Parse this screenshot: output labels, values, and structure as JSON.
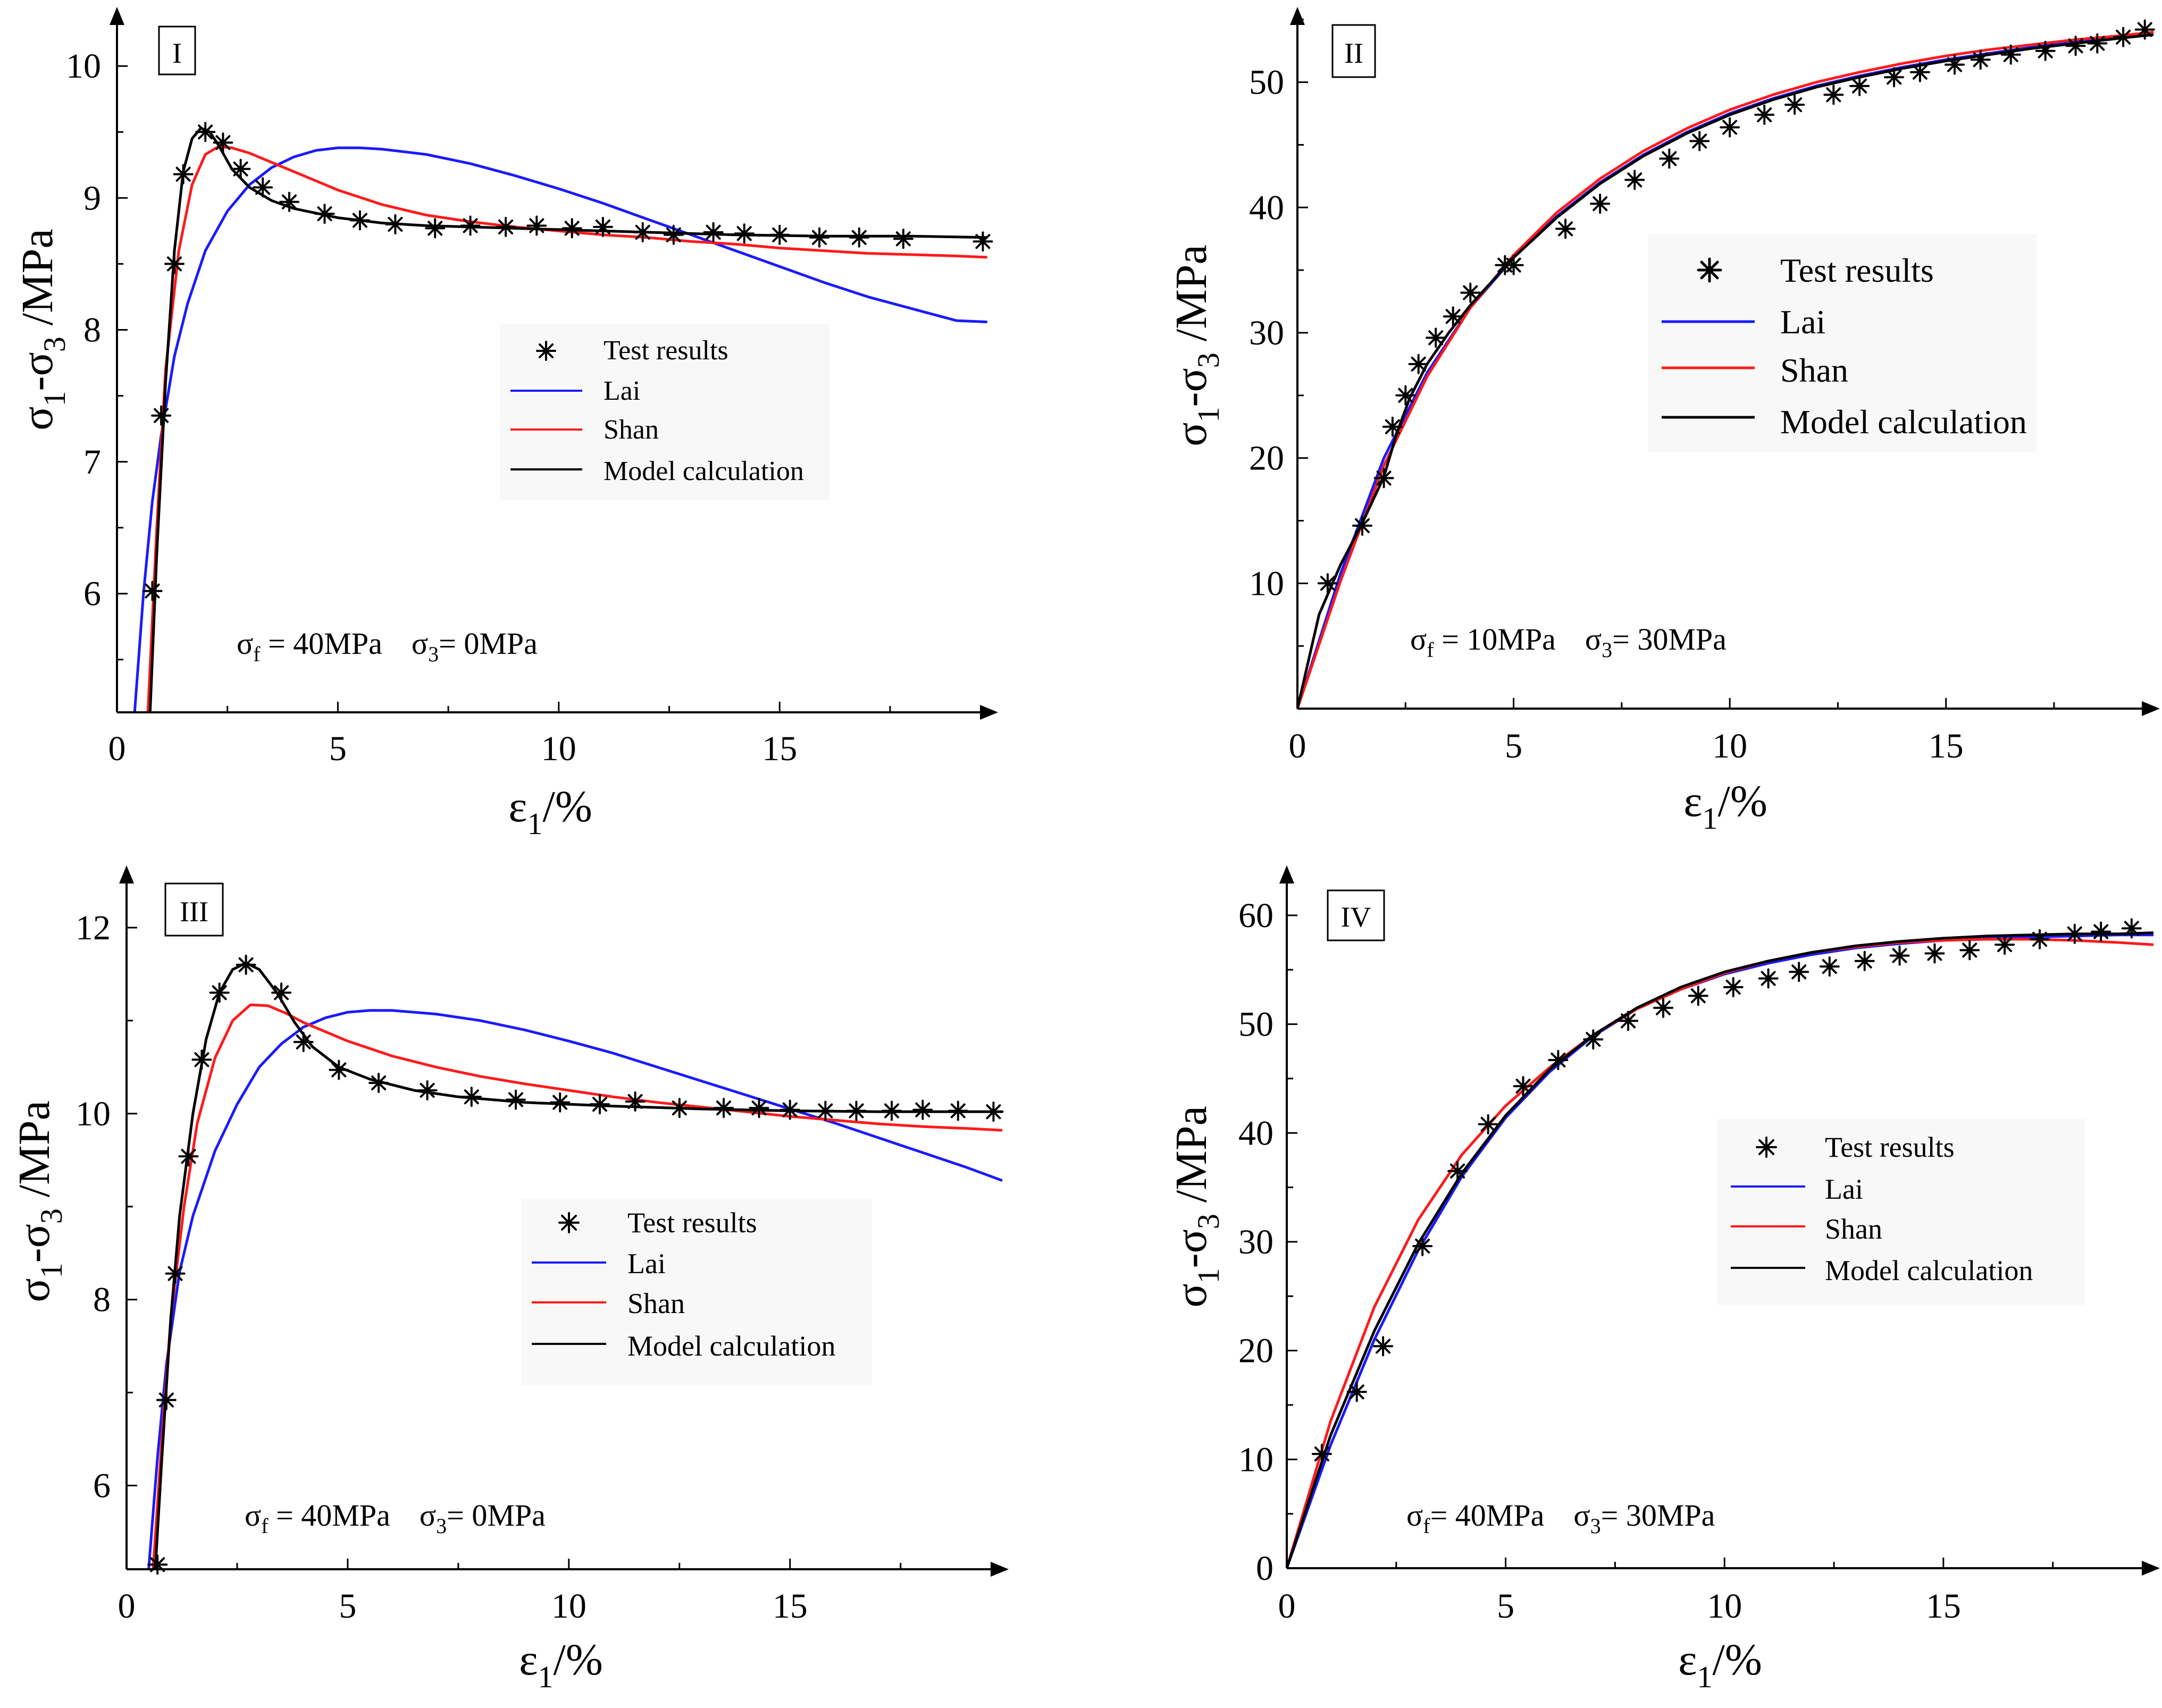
{
  "figure": "four-panel stress-strain comparison",
  "colors": {
    "test": "#000000",
    "lai": "#1a1aff",
    "shan": "#ff1a1a",
    "model": "#000000"
  },
  "chart_data": [
    {
      "type": "line",
      "panel_label": "I",
      "ylim": [
        5.1,
        10.4
      ],
      "xlim": [
        0,
        19.8
      ],
      "yticks": [
        6,
        7,
        8,
        9,
        10
      ],
      "xticks": [
        0,
        5,
        10,
        15
      ],
      "xlabel_main": "ε",
      "xlabel_sub": "1",
      "xlabel_tail": "/%",
      "ylabel_a": "σ",
      "ylabel_sub_a": "1",
      "ylabel_mid": "-σ",
      "ylabel_sub_b": "3",
      "ylabel_tail": " /MPa",
      "legend": {
        "test": "Test results",
        "lai": "Lai",
        "shan": "Shan",
        "model": "Model calculation"
      },
      "note": {
        "f_sym": "σ",
        "f_sub": "f",
        "f_val": " = 40MPa",
        "s3_sym": "σ",
        "s3_sub": "3",
        "s3_val": "= 0MPa"
      },
      "series": [
        {
          "name": "Test results",
          "x": [
            0.8,
            1.0,
            1.3,
            1.5,
            2.0,
            2.4,
            2.8,
            3.3,
            3.9,
            4.7,
            5.5,
            6.3,
            7.2,
            8.0,
            8.8,
            9.5,
            10.3,
            11.0,
            11.9,
            12.6,
            13.5,
            14.2,
            15.0,
            15.9,
            16.8,
            17.8,
            19.6
          ],
          "y": [
            6.02,
            7.35,
            8.5,
            9.18,
            9.5,
            9.42,
            9.22,
            9.08,
            8.97,
            8.88,
            8.83,
            8.8,
            8.77,
            8.79,
            8.78,
            8.79,
            8.77,
            8.78,
            8.74,
            8.72,
            8.74,
            8.73,
            8.72,
            8.7,
            8.7,
            8.69,
            8.67
          ]
        },
        {
          "name": "Lai",
          "x": [
            0.4,
            0.6,
            0.8,
            1.0,
            1.3,
            1.6,
            2.0,
            2.5,
            3.0,
            3.5,
            4.0,
            4.5,
            5.0,
            5.5,
            6.0,
            7.0,
            8.0,
            9.0,
            10.0,
            11.0,
            12.0,
            13.0,
            14.0,
            15.0,
            16.0,
            17.0,
            18.0,
            19.0,
            19.7
          ],
          "y": [
            5.1,
            6.0,
            6.7,
            7.2,
            7.8,
            8.2,
            8.6,
            8.9,
            9.1,
            9.23,
            9.31,
            9.36,
            9.38,
            9.38,
            9.37,
            9.33,
            9.26,
            9.17,
            9.07,
            8.96,
            8.84,
            8.72,
            8.6,
            8.48,
            8.36,
            8.25,
            8.16,
            8.07,
            8.06
          ]
        },
        {
          "name": "Shan",
          "x": [
            0.7,
            0.9,
            1.1,
            1.4,
            1.7,
            2.0,
            2.3,
            2.6,
            3.0,
            3.5,
            4.0,
            5.0,
            6.0,
            7.0,
            8.0,
            9.0,
            10.0,
            11.0,
            12.0,
            13.0,
            14.0,
            15.0,
            16.0,
            17.0,
            18.0,
            19.0,
            19.7
          ],
          "y": [
            5.1,
            6.5,
            7.7,
            8.6,
            9.1,
            9.33,
            9.39,
            9.38,
            9.34,
            9.27,
            9.2,
            9.06,
            8.95,
            8.87,
            8.82,
            8.78,
            8.75,
            8.72,
            8.7,
            8.67,
            8.65,
            8.62,
            8.6,
            8.58,
            8.57,
            8.56,
            8.55
          ]
        },
        {
          "name": "Model calculation",
          "x": [
            0.75,
            0.9,
            1.1,
            1.3,
            1.5,
            1.7,
            1.9,
            2.1,
            2.3,
            2.6,
            3.0,
            3.5,
            4.0,
            5.0,
            6.0,
            7.0,
            8.0,
            10.0,
            12.0,
            14.0,
            16.0,
            18.0,
            19.7
          ],
          "y": [
            5.1,
            6.3,
            7.6,
            8.6,
            9.2,
            9.45,
            9.53,
            9.5,
            9.4,
            9.22,
            9.08,
            8.98,
            8.92,
            8.85,
            8.81,
            8.79,
            8.78,
            8.76,
            8.74,
            8.72,
            8.71,
            8.71,
            8.7
          ]
        }
      ]
    },
    {
      "type": "line",
      "panel_label": "II",
      "ylim": [
        0,
        55.5
      ],
      "xlim": [
        0,
        19.8
      ],
      "yticks": [
        10,
        20,
        30,
        40,
        50
      ],
      "xticks": [
        0,
        5,
        10,
        15
      ],
      "xlabel_main": "ε",
      "xlabel_sub": "1",
      "xlabel_tail": "/%",
      "ylabel_a": "σ",
      "ylabel_sub_a": "1",
      "ylabel_mid": "-σ",
      "ylabel_sub_b": "3",
      "ylabel_tail": " /MPa",
      "legend": {
        "test": "Test results",
        "lai": "Lai",
        "shan": "Shan",
        "model": "Model calculation"
      },
      "note": {
        "f_sym": "σ",
        "f_sub": "f",
        "f_val": " = 10MPa",
        "s3_sym": "σ",
        "s3_sub": "3",
        "s3_val": "= 30MPa"
      },
      "series": [
        {
          "name": "Test results",
          "x": [
            0.7,
            1.5,
            2.0,
            2.2,
            2.5,
            2.8,
            3.2,
            3.6,
            4.0,
            4.8,
            5.0,
            6.2,
            7.0,
            7.8,
            8.6,
            9.3,
            10.0,
            10.8,
            11.5,
            12.4,
            13.0,
            13.8,
            14.4,
            15.2,
            15.8,
            16.5,
            17.3,
            18.0,
            18.5,
            19.1,
            19.6
          ],
          "y": [
            10.0,
            14.6,
            18.4,
            22.5,
            25.0,
            27.5,
            29.6,
            31.3,
            33.2,
            35.4,
            35.4,
            38.3,
            40.3,
            42.2,
            43.9,
            45.3,
            46.4,
            47.4,
            48.2,
            49.0,
            49.7,
            50.4,
            50.8,
            51.4,
            51.8,
            52.2,
            52.5,
            52.9,
            53.1,
            53.6,
            54.2
          ]
        },
        {
          "name": "Lai",
          "x": [
            0,
            1,
            2,
            3,
            4,
            5,
            6,
            7,
            8,
            9,
            10,
            11,
            12,
            13,
            14,
            15,
            16,
            17,
            18,
            19,
            19.8
          ],
          "y": [
            0,
            10.8,
            20.0,
            26.8,
            32.0,
            36.0,
            39.3,
            42.0,
            44.2,
            46.0,
            47.5,
            48.7,
            49.7,
            50.5,
            51.2,
            51.8,
            52.3,
            52.8,
            53.2,
            53.6,
            53.9
          ]
        },
        {
          "name": "Shan",
          "x": [
            0,
            1,
            2,
            3,
            4,
            5,
            6,
            7,
            8,
            9,
            10,
            11,
            12,
            13,
            14,
            15,
            16,
            17,
            18,
            19,
            19.8
          ],
          "y": [
            0,
            10.2,
            19.4,
            26.5,
            32.0,
            36.2,
            39.6,
            42.3,
            44.5,
            46.3,
            47.8,
            49.0,
            50.0,
            50.8,
            51.5,
            52.1,
            52.6,
            53.0,
            53.4,
            53.7,
            54.0
          ]
        },
        {
          "name": "Model calculation",
          "x": [
            0,
            0.5,
            1.0,
            1.5,
            2.0,
            2.3,
            2.6,
            3.0,
            3.5,
            4.0,
            5.0,
            6.0,
            7.0,
            8.0,
            9.0,
            10.0,
            11.0,
            12.0,
            13.0,
            14.0,
            15.0,
            16.0,
            17.0,
            18.0,
            19.0,
            19.8
          ],
          "y": [
            0,
            7.5,
            11.5,
            14.8,
            18.5,
            22.0,
            24.8,
            27.5,
            30.0,
            32.2,
            36.0,
            39.2,
            41.9,
            44.1,
            45.9,
            47.4,
            48.6,
            49.6,
            50.4,
            51.1,
            51.7,
            52.2,
            52.7,
            53.1,
            53.5,
            53.8
          ]
        }
      ]
    },
    {
      "type": "line",
      "panel_label": "III",
      "ylim": [
        5.1,
        12.6
      ],
      "xlim": [
        0,
        19.8
      ],
      "yticks": [
        6,
        8,
        10,
        12
      ],
      "xticks": [
        0,
        5,
        10,
        15
      ],
      "xlabel_main": "ε",
      "xlabel_sub": "1",
      "xlabel_tail": "/%",
      "ylabel_a": "σ",
      "ylabel_sub_a": "1",
      "ylabel_mid": "-σ",
      "ylabel_sub_b": "3",
      "ylabel_tail": " /MPa",
      "legend": {
        "test": "Test results",
        "lai": "Lai",
        "shan": "Shan",
        "model": "Model calculation"
      },
      "note": {
        "f_sym": "σ",
        "f_sub": "f",
        "f_val": " = 40MPa",
        "s3_sym": "σ",
        "s3_sub": "3",
        "s3_val": "= 0MPa"
      },
      "series": [
        {
          "name": "Test results",
          "x": [
            0.7,
            0.9,
            1.1,
            1.4,
            1.7,
            2.1,
            2.7,
            3.5,
            4.0,
            4.8,
            5.7,
            6.8,
            7.8,
            8.8,
            9.8,
            10.7,
            11.5,
            12.5,
            13.5,
            14.3,
            15.0,
            15.8,
            16.5,
            17.3,
            18.0,
            18.8,
            19.6
          ],
          "y": [
            5.15,
            6.92,
            8.28,
            9.54,
            10.58,
            11.3,
            11.6,
            11.3,
            10.77,
            10.47,
            10.33,
            10.25,
            10.18,
            10.15,
            10.12,
            10.1,
            10.13,
            10.06,
            10.06,
            10.06,
            10.04,
            10.03,
            10.03,
            10.03,
            10.04,
            10.03,
            10.02
          ]
        },
        {
          "name": "Lai",
          "x": [
            0.5,
            0.7,
            0.9,
            1.2,
            1.5,
            2.0,
            2.5,
            3.0,
            3.5,
            4.0,
            4.5,
            5.0,
            5.5,
            6.0,
            7.0,
            8.0,
            9.0,
            10.0,
            11.0,
            12.0,
            13.0,
            14.0,
            15.0,
            16.0,
            17.0,
            18.0,
            19.0,
            19.8
          ],
          "y": [
            5.1,
            6.3,
            7.3,
            8.3,
            8.9,
            9.6,
            10.1,
            10.5,
            10.75,
            10.93,
            11.03,
            11.09,
            11.11,
            11.11,
            11.07,
            11.0,
            10.9,
            10.78,
            10.65,
            10.5,
            10.35,
            10.2,
            10.05,
            9.9,
            9.74,
            9.58,
            9.42,
            9.28
          ]
        },
        {
          "name": "Shan",
          "x": [
            0.6,
            0.8,
            1.0,
            1.3,
            1.6,
            2.0,
            2.4,
            2.8,
            3.2,
            3.6,
            4.0,
            5.0,
            6.0,
            7.0,
            8.0,
            9.0,
            10.0,
            11.0,
            12.0,
            13.0,
            14.0,
            15.0,
            16.0,
            17.0,
            18.0,
            19.0,
            19.8
          ],
          "y": [
            5.1,
            6.5,
            7.8,
            9.0,
            9.9,
            10.6,
            11.0,
            11.17,
            11.16,
            11.08,
            10.98,
            10.78,
            10.62,
            10.5,
            10.4,
            10.32,
            10.25,
            10.18,
            10.12,
            10.07,
            10.02,
            9.97,
            9.93,
            9.89,
            9.86,
            9.84,
            9.82
          ]
        },
        {
          "name": "Model calculation",
          "x": [
            0.65,
            0.8,
            1.0,
            1.2,
            1.5,
            1.8,
            2.1,
            2.4,
            2.7,
            3.0,
            3.4,
            3.8,
            4.2,
            4.8,
            5.5,
            6.5,
            7.5,
            9.0,
            11.0,
            13.0,
            15.0,
            17.0,
            19.0,
            19.8
          ],
          "y": [
            5.1,
            6.3,
            7.8,
            8.9,
            10.0,
            10.8,
            11.3,
            11.55,
            11.62,
            11.55,
            11.3,
            10.98,
            10.72,
            10.5,
            10.37,
            10.25,
            10.18,
            10.12,
            10.08,
            10.05,
            10.03,
            10.02,
            10.02,
            10.02
          ]
        }
      ]
    },
    {
      "type": "line",
      "panel_label": "IV",
      "ylim": [
        0,
        64
      ],
      "xlim": [
        0,
        19.8
      ],
      "yticks": [
        0,
        10,
        20,
        30,
        40,
        50,
        60
      ],
      "xticks": [
        0,
        5,
        10,
        15
      ],
      "xlabel_main": "ε",
      "xlabel_sub": "1",
      "xlabel_tail": "/%",
      "ylabel_a": "σ",
      "ylabel_sub_a": "1",
      "ylabel_mid": "-σ",
      "ylabel_sub_b": "3",
      "ylabel_tail": " /MPa",
      "legend": {
        "test": "Test results",
        "lai": "Lai",
        "shan": "Shan",
        "model": "Model calculation"
      },
      "note": {
        "f_sym": "σ",
        "f_sub": "f",
        "f_val": "= 40MPa",
        "s3_sym": "σ",
        "s3_sub": "3",
        "s3_val": "= 30MPa"
      },
      "series": [
        {
          "name": "Test results",
          "x": [
            0.8,
            1.6,
            2.2,
            3.1,
            3.9,
            4.6,
            5.4,
            6.2,
            7.0,
            7.8,
            8.6,
            9.4,
            10.2,
            11.0,
            11.7,
            12.4,
            13.2,
            14.0,
            14.8,
            15.6,
            16.4,
            17.2,
            18.0,
            18.6,
            19.3
          ],
          "y": [
            10.5,
            16.2,
            20.4,
            29.6,
            36.5,
            40.8,
            44.3,
            46.7,
            48.6,
            50.3,
            51.5,
            52.6,
            53.4,
            54.2,
            54.8,
            55.3,
            55.8,
            56.3,
            56.5,
            56.8,
            57.3,
            57.8,
            58.3,
            58.5,
            58.8
          ]
        },
        {
          "name": "Lai",
          "x": [
            0,
            1,
            2,
            3,
            4,
            5,
            6,
            7,
            8,
            9,
            10,
            11,
            12,
            13,
            14,
            15,
            16,
            17,
            18,
            19,
            19.8
          ],
          "y": [
            0,
            11.3,
            21.0,
            29.2,
            36.0,
            41.4,
            45.6,
            48.9,
            51.4,
            53.2,
            54.6,
            55.6,
            56.4,
            57.0,
            57.4,
            57.7,
            57.9,
            58.0,
            58.1,
            58.2,
            58.2
          ]
        },
        {
          "name": "Shan",
          "x": [
            0,
            1,
            2,
            3,
            4,
            5,
            6,
            7,
            8,
            9,
            10,
            11,
            12,
            13,
            14,
            15,
            16,
            17,
            18,
            19,
            19.8
          ],
          "y": [
            0,
            13.5,
            24.0,
            32.0,
            38.0,
            42.5,
            46.0,
            49.0,
            51.4,
            53.2,
            54.7,
            55.8,
            56.6,
            57.1,
            57.5,
            57.7,
            57.8,
            57.8,
            57.7,
            57.5,
            57.3
          ]
        },
        {
          "name": "Model calculation",
          "x": [
            0,
            1,
            2,
            3,
            4,
            5,
            6,
            7,
            8,
            9,
            10,
            11,
            12,
            13,
            14,
            15,
            16,
            17,
            18,
            19,
            19.8
          ],
          "y": [
            0,
            12.2,
            21.8,
            29.8,
            36.3,
            41.6,
            45.8,
            49.0,
            51.5,
            53.4,
            54.8,
            55.8,
            56.6,
            57.2,
            57.6,
            57.9,
            58.1,
            58.2,
            58.3,
            58.3,
            58.4
          ]
        }
      ]
    }
  ]
}
